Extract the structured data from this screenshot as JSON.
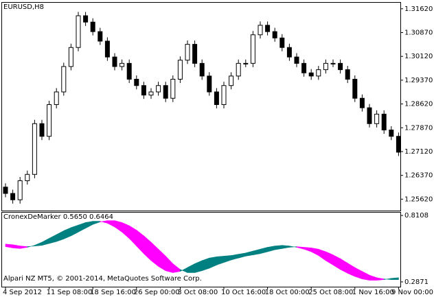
{
  "chart_data": [
    {
      "type": "candlestick",
      "title": "EURUSD,H8",
      "categories": [
        "4 Sep 2012",
        null,
        null,
        null,
        null,
        null,
        "11 Sep 08:00",
        null,
        null,
        null,
        null,
        null,
        "18 Sep 16:00",
        null,
        null,
        null,
        null,
        null,
        "26 Sep 00:00",
        null,
        null,
        null,
        null,
        null,
        "3 Oct 08:00",
        null,
        null,
        null,
        null,
        null,
        "10 Oct 16:00",
        null,
        null,
        null,
        null,
        null,
        "18 Oct 00:00",
        null,
        null,
        null,
        null,
        null,
        "25 Oct 08:00",
        null,
        null,
        null,
        null,
        null,
        "1 Nov 16:00",
        null,
        null,
        null,
        null,
        null,
        "9 Nov 00:00"
      ],
      "open": [
        1.26,
        1.258,
        1.256,
        1.262,
        1.264,
        1.28,
        1.276,
        1.286,
        1.29,
        1.298,
        1.304,
        1.314,
        1.312,
        1.309,
        1.306,
        1.301,
        1.298,
        1.299,
        1.294,
        1.292,
        1.289,
        1.29,
        1.292,
        1.288,
        1.294,
        1.3,
        1.305,
        1.299,
        1.295,
        1.29,
        1.286,
        1.292,
        1.295,
        1.299,
        1.299,
        1.308,
        1.311,
        1.309,
        1.307,
        1.304,
        1.301,
        1.299,
        1.296,
        1.295,
        1.297,
        1.299,
        1.299,
        1.297,
        1.294,
        1.288,
        1.285,
        1.28,
        1.283,
        1.278,
        1.276
      ],
      "high": [
        1.2612,
        1.2592,
        1.2632,
        1.2652,
        1.2812,
        1.2812,
        1.2872,
        1.2912,
        1.2992,
        1.3052,
        1.3152,
        1.3152,
        1.3132,
        1.3102,
        1.3072,
        1.3022,
        1.3002,
        1.3002,
        1.2952,
        1.2932,
        1.2912,
        1.2932,
        1.2932,
        1.2952,
        1.3012,
        1.3062,
        1.3062,
        1.3002,
        1.2962,
        1.2912,
        1.2932,
        1.2962,
        1.3002,
        1.3002,
        1.3092,
        1.3122,
        1.3122,
        1.3102,
        1.3082,
        1.3052,
        1.3022,
        1.3002,
        1.2972,
        1.2982,
        1.3002,
        1.3002,
        1.3002,
        1.2982,
        1.2952,
        1.2892,
        1.2862,
        1.2842,
        1.2842,
        1.2792,
        1.2772
      ],
      "low": [
        1.2568,
        1.2548,
        1.2548,
        1.2608,
        1.2628,
        1.2748,
        1.2748,
        1.2848,
        1.2888,
        1.2968,
        1.3028,
        1.3108,
        1.3078,
        1.3048,
        1.2998,
        1.2968,
        1.2968,
        1.2928,
        1.2908,
        1.2878,
        1.2878,
        1.2888,
        1.2868,
        1.2868,
        1.2928,
        1.2988,
        1.2978,
        1.2938,
        1.2888,
        1.2848,
        1.2848,
        1.2908,
        1.2938,
        1.2978,
        1.2978,
        1.3068,
        1.3078,
        1.3058,
        1.3028,
        1.2998,
        1.2978,
        1.2948,
        1.2938,
        1.2938,
        1.2958,
        1.2978,
        1.2958,
        1.2928,
        1.2868,
        1.2838,
        1.2788,
        1.2788,
        1.2768,
        1.2748,
        1.2698
      ],
      "close": [
        1.258,
        1.256,
        1.262,
        1.264,
        1.28,
        1.276,
        1.286,
        1.29,
        1.298,
        1.304,
        1.314,
        1.312,
        1.309,
        1.306,
        1.301,
        1.298,
        1.299,
        1.294,
        1.292,
        1.289,
        1.29,
        1.292,
        1.288,
        1.294,
        1.3,
        1.305,
        1.299,
        1.295,
        1.29,
        1.286,
        1.292,
        1.295,
        1.299,
        1.299,
        1.308,
        1.311,
        1.309,
        1.307,
        1.304,
        1.301,
        1.299,
        1.296,
        1.295,
        1.297,
        1.299,
        1.299,
        1.297,
        1.294,
        1.288,
        1.285,
        1.28,
        1.283,
        1.278,
        1.276,
        1.271
      ],
      "ylim": [
        1.2526,
        1.3181
      ],
      "yticks": [
        {
          "value": 1.2562,
          "label": "1.25620"
        },
        {
          "value": 1.2637,
          "label": "1.26370"
        },
        {
          "value": 1.2712,
          "label": "1.27120"
        },
        {
          "value": 1.2787,
          "label": "1.27870"
        },
        {
          "value": 1.2862,
          "label": "1.28620"
        },
        {
          "value": 1.2937,
          "label": "1.29370"
        },
        {
          "value": 1.3012,
          "label": "1.30120"
        },
        {
          "value": 1.3087,
          "label": "1.30870"
        },
        {
          "value": 1.3162,
          "label": "1.31620"
        }
      ],
      "up_color": "#ffffff",
      "down_color": "#000000"
    },
    {
      "type": "band",
      "title": "CronexDeMarker 0.5650 0.6464",
      "series": [
        {
          "color": "#008080",
          "values": [
            0.565,
            0.555,
            0.55,
            0.56,
            0.575,
            0.6,
            0.63,
            0.66,
            0.69,
            0.715,
            0.735,
            0.755,
            0.765,
            0.765,
            0.75,
            0.72,
            0.68,
            0.63,
            0.57,
            0.51,
            0.455,
            0.41,
            0.375,
            0.36,
            0.37,
            0.4,
            0.43,
            0.455,
            0.475,
            0.485,
            0.49,
            0.495,
            0.505,
            0.515,
            0.53,
            0.545,
            0.56,
            0.57,
            0.575,
            0.57,
            0.56,
            0.545,
            0.525,
            0.495,
            0.455,
            0.42,
            0.385,
            0.355,
            0.33,
            0.31,
            0.3,
            0.3,
            0.305,
            0.315,
            0.32
          ]
        },
        {
          "color": "#ff00ff",
          "values": [
            0.585,
            0.58,
            0.57,
            0.565,
            0.57,
            0.575,
            0.59,
            0.605,
            0.625,
            0.65,
            0.68,
            0.71,
            0.74,
            0.76,
            0.77,
            0.77,
            0.755,
            0.73,
            0.695,
            0.65,
            0.6,
            0.545,
            0.49,
            0.43,
            0.385,
            0.36,
            0.36,
            0.375,
            0.395,
            0.42,
            0.44,
            0.46,
            0.475,
            0.49,
            0.5,
            0.51,
            0.525,
            0.54,
            0.55,
            0.56,
            0.565,
            0.56,
            0.555,
            0.545,
            0.525,
            0.5,
            0.47,
            0.435,
            0.4,
            0.37,
            0.34,
            0.32,
            0.31,
            0.305,
            0.305
          ]
        }
      ],
      "ylim": [
        0.249,
        0.833
      ],
      "yticks": [
        0.8108,
        0.2871
      ],
      "footer": "Alpari NZ MT5, © 2001-2014, MetaQuotes Software Corp."
    }
  ]
}
